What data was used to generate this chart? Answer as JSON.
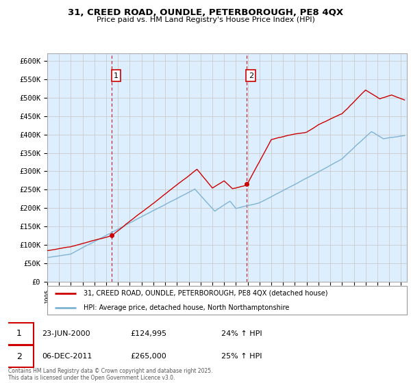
{
  "title_line1": "31, CREED ROAD, OUNDLE, PETERBOROUGH, PE8 4QX",
  "title_line2": "Price paid vs. HM Land Registry's House Price Index (HPI)",
  "xlim_start": 1995.0,
  "xlim_end": 2025.5,
  "ylim_min": 0,
  "ylim_max": 620000,
  "yticks": [
    0,
    50000,
    100000,
    150000,
    200000,
    250000,
    300000,
    350000,
    400000,
    450000,
    500000,
    550000,
    600000
  ],
  "ytick_labels": [
    "£0",
    "£50K",
    "£100K",
    "£150K",
    "£200K",
    "£250K",
    "£300K",
    "£350K",
    "£400K",
    "£450K",
    "£500K",
    "£550K",
    "£600K"
  ],
  "sale1_x": 2000.48,
  "sale1_y": 124995,
  "sale1_label": "1",
  "sale1_date": "23-JUN-2000",
  "sale1_price": "£124,995",
  "sale1_hpi": "24% ↑ HPI",
  "sale2_x": 2011.92,
  "sale2_y": 265000,
  "sale2_label": "2",
  "sale2_date": "06-DEC-2011",
  "sale2_price": "£265,000",
  "sale2_hpi": "25% ↑ HPI",
  "red_color": "#cc0000",
  "blue_color": "#7fb3d3",
  "vline_color": "#cc0000",
  "grid_color": "#cccccc",
  "chart_bg": "#ddeeff",
  "bg_color": "#ffffff",
  "legend_label_red": "31, CREED ROAD, OUNDLE, PETERBOROUGH, PE8 4QX (detached house)",
  "legend_label_blue": "HPI: Average price, detached house, North Northamptonshire",
  "footer": "Contains HM Land Registry data © Crown copyright and database right 2025.\nThis data is licensed under the Open Government Licence v3.0."
}
